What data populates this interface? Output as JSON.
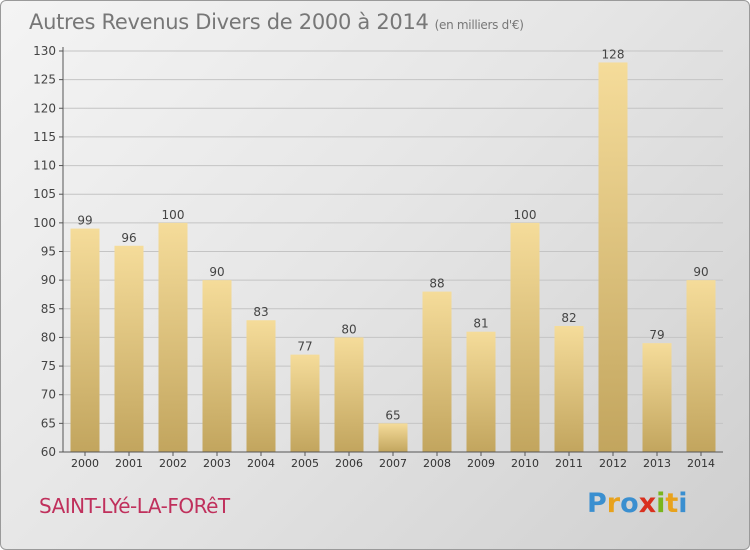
{
  "title": "Autres Revenus Divers de 2000 à 2014",
  "subtitle": "(en milliers d'€)",
  "city": "SAINT-LYé-LA-FORêT",
  "logo": {
    "letters": [
      {
        "ch": "P",
        "color": "#3a8fd0"
      },
      {
        "ch": "r",
        "color": "#e8a21c"
      },
      {
        "ch": "o",
        "color": "#3a8fd0"
      },
      {
        "ch": "x",
        "color": "#d9301e"
      },
      {
        "ch": "i",
        "color": "#7ab51d"
      },
      {
        "ch": "t",
        "color": "#e8a21c"
      },
      {
        "ch": "i",
        "color": "#3a8fd0"
      }
    ]
  },
  "colors": {
    "bar_top": "#f5dc9a",
    "bar_bottom": "#c2a55e",
    "axis": "#555555",
    "grid": "#c4c4c4",
    "city": "#c0305c"
  },
  "chart_data": {
    "type": "bar",
    "categories": [
      "2000",
      "2001",
      "2002",
      "2003",
      "2004",
      "2005",
      "2006",
      "2007",
      "2008",
      "2009",
      "2010",
      "2011",
      "2012",
      "2013",
      "2014"
    ],
    "values": [
      99,
      96,
      100,
      90,
      83,
      77,
      80,
      65,
      88,
      81,
      100,
      82,
      128,
      79,
      90
    ],
    "yticks": [
      60,
      65,
      70,
      75,
      80,
      85,
      90,
      95,
      100,
      105,
      110,
      115,
      120,
      125,
      130
    ],
    "ylim": [
      60,
      130
    ],
    "grid": true,
    "title": "Autres Revenus Divers de 2000 à 2014",
    "subtitle": "(en milliers d'€)",
    "xlabel": "",
    "ylabel": ""
  }
}
